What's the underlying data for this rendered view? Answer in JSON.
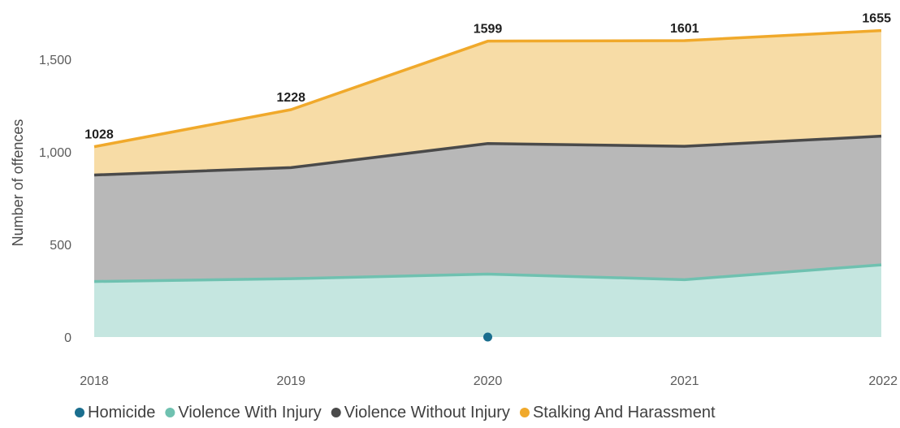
{
  "chart_data": {
    "type": "area",
    "stacked": true,
    "title": "",
    "xlabel": "",
    "ylabel": "Number of offences",
    "x": [
      "2018",
      "2019",
      "2020",
      "2021",
      "2022"
    ],
    "ylim": [
      0,
      1750
    ],
    "yticks": [
      0,
      500,
      1000,
      1500
    ],
    "ytick_labels": [
      "0",
      "500",
      "1,000",
      "1,500"
    ],
    "grid": false,
    "legend": "bottom",
    "series": [
      {
        "name": "Homicide",
        "values": [
          0,
          0,
          1,
          0,
          0
        ],
        "color": "#1a6e8e",
        "marker": "point"
      },
      {
        "name": "Violence With Injury",
        "values": [
          300,
          315,
          340,
          310,
          390
        ],
        "fill": "#c5e6e0",
        "color": "#6fc1b0"
      },
      {
        "name": "Violence Without Injury",
        "values": [
          575,
          600,
          705,
          720,
          695
        ],
        "fill": "#b8b8b8",
        "color": "#4a4a4a"
      },
      {
        "name": "Stalking And Harassment",
        "values": [
          153,
          313,
          553,
          571,
          570
        ],
        "fill": "#f7dca6",
        "color": "#f0a92b"
      }
    ],
    "totals": [
      1028,
      1228,
      1599,
      1601,
      1655
    ],
    "total_labels": [
      "1028",
      "1228",
      "1599",
      "1601",
      "1655"
    ]
  }
}
